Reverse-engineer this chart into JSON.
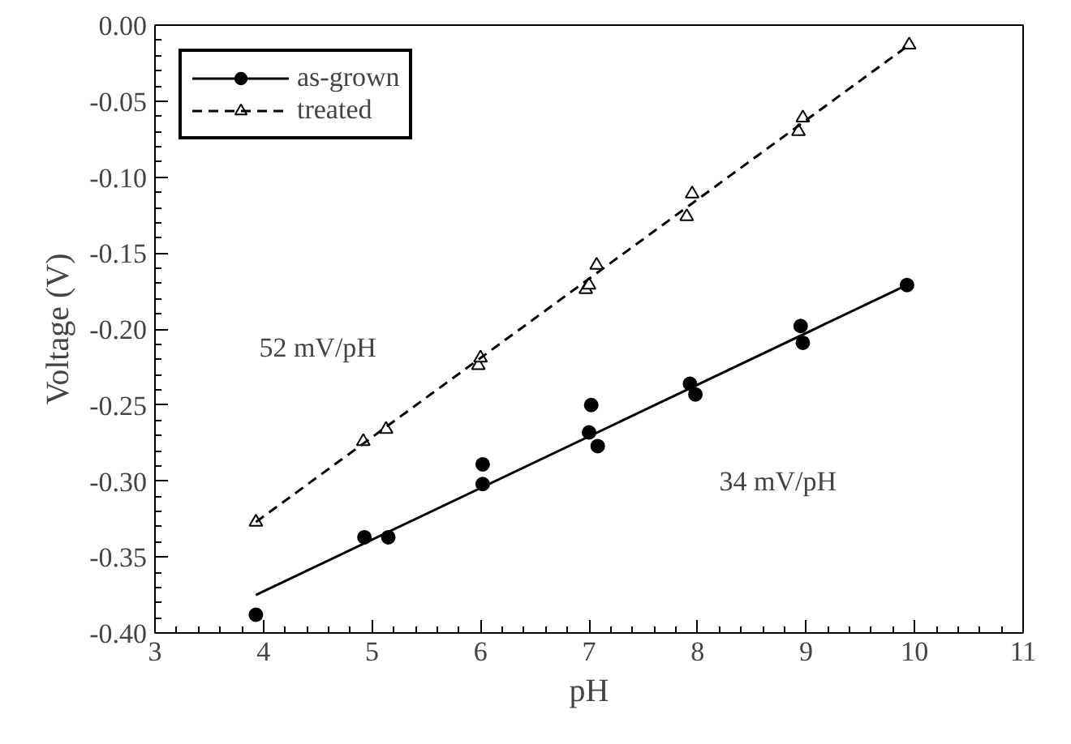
{
  "chart_data": {
    "type": "scatter",
    "xlabel": "pH",
    "ylabel": "Voltage (V)",
    "xlim": [
      3,
      11
    ],
    "ylim": [
      -0.4,
      0
    ],
    "xticks": [
      3,
      4,
      5,
      6,
      7,
      8,
      9,
      10,
      11
    ],
    "yticks": [
      {
        "value": -0.4,
        "label": "-0.40"
      },
      {
        "value": -0.35,
        "label": "-0.35"
      },
      {
        "value": -0.3,
        "label": "-0.30"
      },
      {
        "value": -0.25,
        "label": "-0.25"
      },
      {
        "value": -0.2,
        "label": "-0.20"
      },
      {
        "value": -0.15,
        "label": "-0.15"
      },
      {
        "value": -0.1,
        "label": "-0.10"
      },
      {
        "value": -0.05,
        "label": "-0.05"
      },
      {
        "value": 0,
        "label": "0.00"
      }
    ],
    "grid": false,
    "legend": "top left",
    "series": [
      {
        "name": "as-grown",
        "marker": "circle",
        "color": "#000000",
        "x": [
          3.93,
          4.93,
          5.15,
          6.02,
          6.02,
          7.0,
          7.02,
          7.08,
          7.93,
          7.98,
          8.95,
          8.97,
          9.93
        ],
        "values": [
          -0.388,
          -0.337,
          -0.337,
          -0.289,
          -0.302,
          -0.268,
          -0.25,
          -0.277,
          -0.236,
          -0.243,
          -0.198,
          -0.209,
          -0.171
        ]
      },
      {
        "type": "line",
        "line_style": "solid",
        "color": "#000000",
        "x": [
          3.93,
          9.93
        ],
        "values": [
          -0.375,
          -0.171
        ]
      },
      {
        "name": "treated",
        "marker": "triangle",
        "color": "#000000",
        "x": [
          3.93,
          4.92,
          5.13,
          5.98,
          6.0,
          6.97,
          7.0,
          7.07,
          7.9,
          7.95,
          8.93,
          8.97,
          9.95
        ],
        "values": [
          -0.327,
          -0.274,
          -0.266,
          -0.224,
          -0.219,
          -0.174,
          -0.171,
          -0.158,
          -0.126,
          -0.111,
          -0.07,
          -0.061,
          -0.013
        ]
      },
      {
        "type": "line",
        "line_style": "dashed",
        "color": "#000000",
        "x": [
          3.93,
          9.95
        ],
        "values": [
          -0.327,
          -0.013
        ]
      }
    ],
    "annotations": [
      "52 mV/pH",
      "34 mV/pH"
    ]
  }
}
